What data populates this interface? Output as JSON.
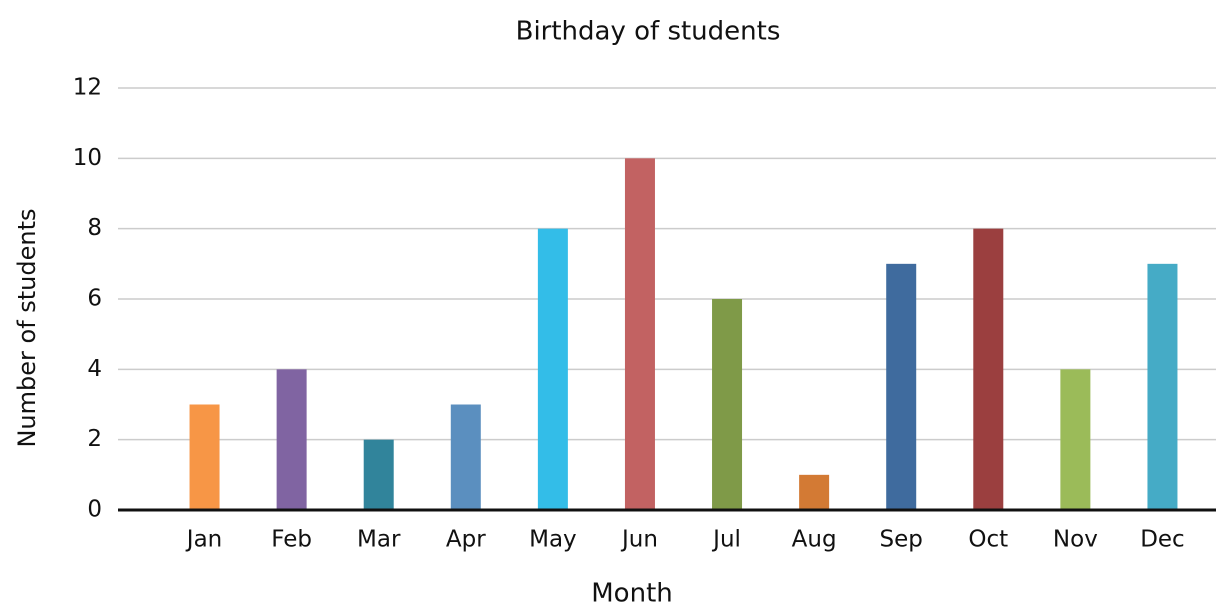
{
  "chart_data": {
    "type": "bar",
    "title": "Birthday of students",
    "x_label": "Month",
    "y_label": "Number of students",
    "categories": [
      "Jan",
      "Feb",
      "Mar",
      "Apr",
      "May",
      "Jun",
      "Jul",
      "Aug",
      "Sep",
      "Oct",
      "Nov",
      "Dec"
    ],
    "values": [
      3,
      4,
      2,
      3,
      8,
      10,
      6,
      1,
      7,
      8,
      4,
      7
    ],
    "colors": [
      "#f79646",
      "#8064a2",
      "#31849b",
      "#5b8fbf",
      "#33bde8",
      "#c26262",
      "#7f9a48",
      "#d37a34",
      "#3f6b9e",
      "#9b3f3f",
      "#9bbb59",
      "#45abc6"
    ],
    "ylim": [
      0,
      12
    ],
    "yticks": [
      0,
      2,
      4,
      6,
      8,
      10,
      12
    ],
    "grid": true
  }
}
